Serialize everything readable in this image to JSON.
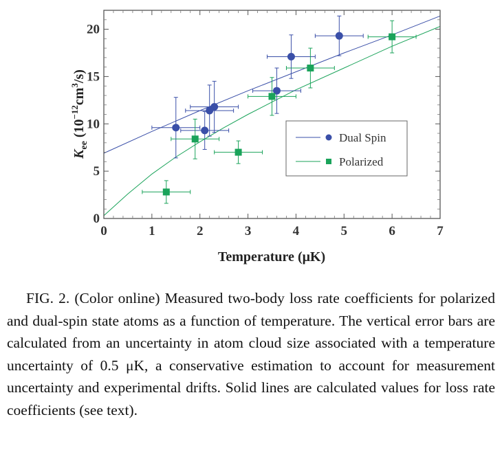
{
  "chart_data": {
    "type": "scatter",
    "xlabel": "Temperature (μK)",
    "ylabel": "K_ee (10^-12 cm^3/s)",
    "ylabel_parts": {
      "k": "K",
      "sub": "ee",
      "open": " (10",
      "exp1": "−12",
      "mid": "cm",
      "exp2": "3",
      "close": "/s)"
    },
    "xlim": [
      0,
      7
    ],
    "ylim": [
      0,
      22
    ],
    "x_ticks": [
      0,
      1,
      2,
      3,
      4,
      5,
      6,
      7
    ],
    "y_ticks": [
      0,
      5,
      10,
      15,
      20
    ],
    "grid": false,
    "legend_position": "center-right",
    "series": [
      {
        "name": "Dual Spin",
        "marker": "circle",
        "color": "#3a4fa8",
        "points": [
          {
            "x": 1.5,
            "y": 9.6,
            "xerr": 0.5,
            "yerr": 3.2
          },
          {
            "x": 2.1,
            "y": 9.3,
            "xerr": 0.5,
            "yerr": 2.0
          },
          {
            "x": 2.2,
            "y": 11.4,
            "xerr": 0.5,
            "yerr": 2.7
          },
          {
            "x": 2.3,
            "y": 11.8,
            "xerr": 0.5,
            "yerr": 2.7
          },
          {
            "x": 3.6,
            "y": 13.5,
            "xerr": 0.5,
            "yerr": 2.4
          },
          {
            "x": 3.9,
            "y": 17.1,
            "xerr": 0.5,
            "yerr": 2.3
          },
          {
            "x": 4.9,
            "y": 19.3,
            "xerr": 0.5,
            "yerr": 2.1
          }
        ],
        "curve": [
          [
            0,
            6.9
          ],
          [
            1,
            9.2
          ],
          [
            2,
            11.4
          ],
          [
            3,
            13.5
          ],
          [
            4,
            15.5
          ],
          [
            5,
            17.5
          ],
          [
            6,
            19.4
          ],
          [
            7,
            21.4
          ]
        ]
      },
      {
        "name": "Polarized",
        "marker": "square",
        "color": "#1aa35a",
        "points": [
          {
            "x": 1.3,
            "y": 2.8,
            "xerr": 0.5,
            "yerr": 1.2
          },
          {
            "x": 1.9,
            "y": 8.4,
            "xerr": 0.5,
            "yerr": 2.1
          },
          {
            "x": 2.8,
            "y": 7.0,
            "xerr": 0.5,
            "yerr": 1.2
          },
          {
            "x": 3.5,
            "y": 12.9,
            "xerr": 0.5,
            "yerr": 2.0
          },
          {
            "x": 4.3,
            "y": 15.9,
            "xerr": 0.5,
            "yerr": 2.1
          },
          {
            "x": 6.0,
            "y": 19.2,
            "xerr": 0.5,
            "yerr": 1.7
          }
        ],
        "curve": [
          [
            0,
            0.3
          ],
          [
            0.5,
            2.6
          ],
          [
            1,
            4.7
          ],
          [
            1.5,
            6.5
          ],
          [
            2,
            8.1
          ],
          [
            2.5,
            9.6
          ],
          [
            3,
            11.0
          ],
          [
            3.5,
            12.3
          ],
          [
            4,
            13.6
          ],
          [
            5,
            15.9
          ],
          [
            6,
            18.2
          ],
          [
            7,
            20.3
          ]
        ]
      }
    ]
  },
  "caption": {
    "lead": "FIG. 2.",
    "text": "(Color online) Measured two-body loss rate coefficients for polarized and dual-spin state atoms as a function of temperature. The vertical error bars are calculated from an uncertainty in atom cloud size associated with a temperature uncertainty of 0.5 μK, a conservative estimation to account for measurement uncertainty and experimental drifts. Solid lines are calculated values for loss rate coefficients (see text)."
  }
}
